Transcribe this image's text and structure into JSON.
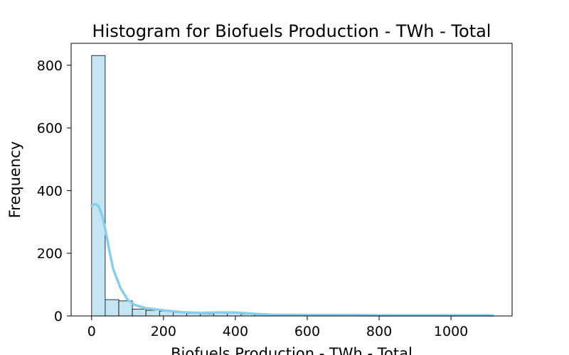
{
  "chart_data": {
    "type": "histogram",
    "title": "Histogram for Biofuels Production - TWh - Total",
    "xlabel": "Biofuels Production - TWh - Total",
    "ylabel": "Frequency",
    "xlim": [
      -57,
      1170
    ],
    "ylim": [
      0,
      870
    ],
    "x_ticks": [
      0,
      200,
      400,
      600,
      800,
      1000
    ],
    "y_ticks": [
      0,
      200,
      400,
      600,
      800
    ],
    "bin_width": 37.8,
    "bin_start": 0,
    "bins": [
      {
        "x0": 0.0,
        "x1": 37.8,
        "count": 831
      },
      {
        "x0": 37.8,
        "x1": 75.6,
        "count": 52
      },
      {
        "x0": 75.6,
        "x1": 113.4,
        "count": 48
      },
      {
        "x0": 113.4,
        "x1": 151.2,
        "count": 22
      },
      {
        "x0": 151.2,
        "x1": 189.0,
        "count": 18
      },
      {
        "x0": 189.0,
        "x1": 226.8,
        "count": 15
      },
      {
        "x0": 226.8,
        "x1": 264.6,
        "count": 11
      },
      {
        "x0": 264.6,
        "x1": 302.4,
        "count": 8
      },
      {
        "x0": 302.4,
        "x1": 340.2,
        "count": 7
      },
      {
        "x0": 340.2,
        "x1": 378.0,
        "count": 9
      },
      {
        "x0": 378.0,
        "x1": 415.8,
        "count": 10
      },
      {
        "x0": 415.8,
        "x1": 453.6,
        "count": 6
      },
      {
        "x0": 453.6,
        "x1": 491.4,
        "count": 4
      },
      {
        "x0": 491.4,
        "x1": 529.2,
        "count": 3
      },
      {
        "x0": 529.2,
        "x1": 567.0,
        "count": 2
      },
      {
        "x0": 567.0,
        "x1": 604.8,
        "count": 3
      },
      {
        "x0": 604.8,
        "x1": 642.6,
        "count": 2
      },
      {
        "x0": 642.6,
        "x1": 680.4,
        "count": 1
      },
      {
        "x0": 680.4,
        "x1": 718.2,
        "count": 2
      },
      {
        "x0": 718.2,
        "x1": 756.0,
        "count": 1
      },
      {
        "x0": 756.0,
        "x1": 793.8,
        "count": 1
      },
      {
        "x0": 793.8,
        "x1": 831.6,
        "count": 2
      },
      {
        "x0": 831.6,
        "x1": 869.4,
        "count": 1
      },
      {
        "x0": 869.4,
        "x1": 907.2,
        "count": 1
      },
      {
        "x0": 907.2,
        "x1": 945.0,
        "count": 1
      },
      {
        "x0": 945.0,
        "x1": 982.8,
        "count": 0
      },
      {
        "x0": 982.8,
        "x1": 1020.6,
        "count": 1
      },
      {
        "x0": 1020.6,
        "x1": 1058.4,
        "count": 0
      },
      {
        "x0": 1058.4,
        "x1": 1096.2,
        "count": 1
      },
      {
        "x0": 1096.2,
        "x1": 1134.0,
        "count": 0
      }
    ],
    "kde": {
      "x": [
        0,
        10,
        20,
        30,
        40,
        50,
        60,
        80,
        100,
        120,
        150,
        200,
        250,
        300,
        350,
        400,
        450,
        500,
        600,
        700,
        800,
        900,
        1000,
        1100,
        1117
      ],
      "y": [
        352,
        357,
        350,
        318,
        265,
        205,
        150,
        90,
        52,
        35,
        25,
        18,
        12,
        10,
        11,
        11,
        7,
        4,
        3,
        3,
        2,
        2,
        2,
        2,
        1
      ]
    },
    "grid": false,
    "legend": "none",
    "colors": {
      "bar_fill": "#c6e5f3",
      "bar_edge": "#000000",
      "kde_line": "#87ceeb"
    }
  }
}
